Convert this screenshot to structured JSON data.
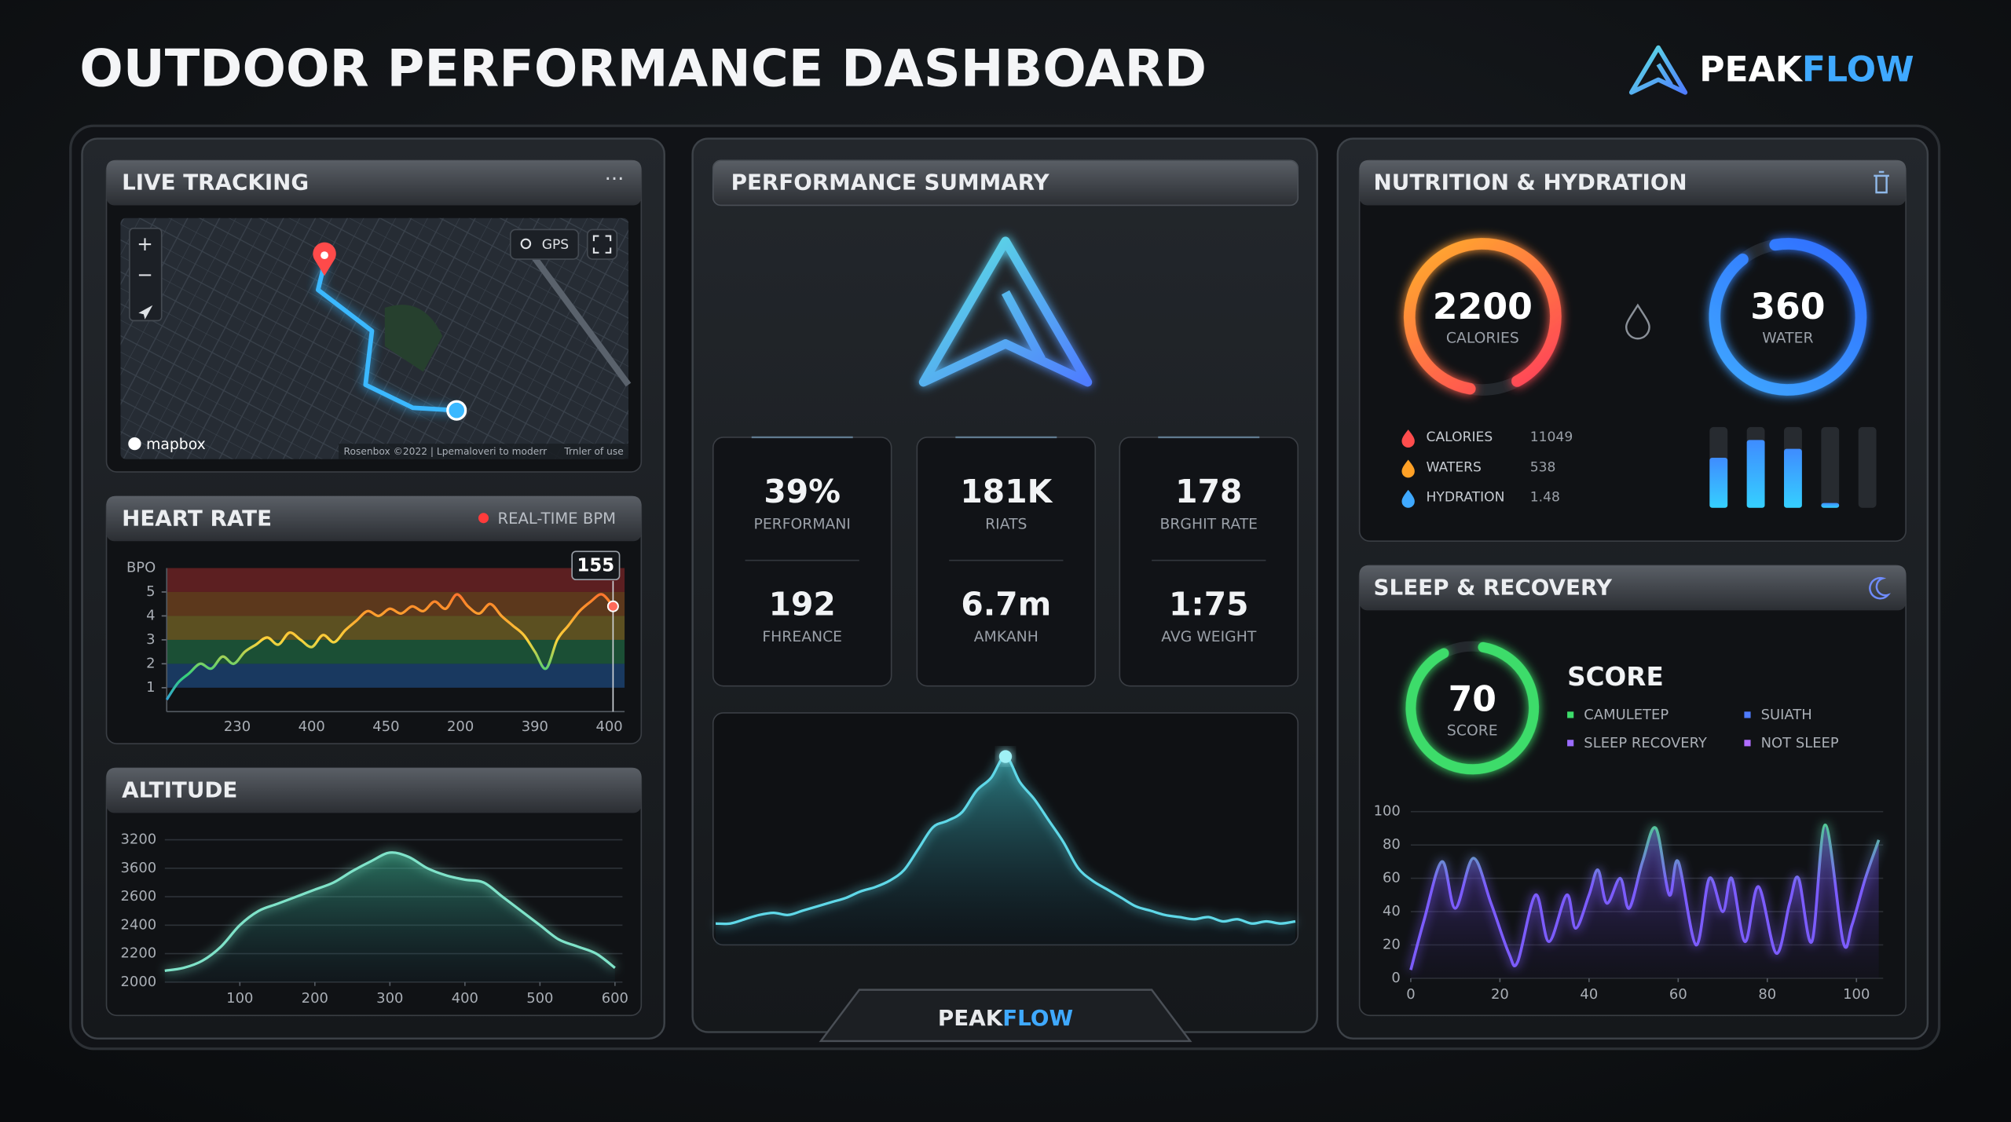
{
  "header": {
    "title": "OUTDOOR PERFORMANCE DASHBOARD",
    "brand_main": "PEAK",
    "brand_accent": "FLOW"
  },
  "live_tracking": {
    "title": "LIVE TRACKING",
    "gps": "GPS",
    "map_credit": "mapbox",
    "attribution": "Rosenbox ©2022 | Lpemaloveri to moderr",
    "terms": "Trnler of use"
  },
  "summary": {
    "title": "PERFORMANCE SUMMARY",
    "stats": [
      {
        "value": "39%",
        "label": "PERFORMANI"
      },
      {
        "value": "181K",
        "label": "RIATS"
      },
      {
        "value": "178",
        "label": "BRGHIT RATE"
      },
      {
        "value": "192",
        "label": "FHREANCE"
      },
      {
        "value": "6.7m",
        "label": "AMKANH"
      },
      {
        "value": "1:75",
        "label": "AVG WEIGHT"
      }
    ]
  },
  "nutrition": {
    "title": "NUTRITION & HYDRATION",
    "calories": {
      "value": "2200",
      "label": "CALORIES"
    },
    "water": {
      "value": "360",
      "label": "WATER"
    },
    "legend": [
      {
        "label": "CALORIES",
        "value": "11049",
        "color": "#ff4d4d"
      },
      {
        "label": "WATERS",
        "value": "538",
        "color": "#ffa126"
      },
      {
        "label": "HYDRATION",
        "value": "1.48",
        "color": "#3fa9ff"
      }
    ]
  },
  "sleep": {
    "title": "SLEEP & RECOVERY",
    "score": "70",
    "score_label": "SCORE",
    "heading": "SCORE",
    "legend": [
      {
        "label": "CAMULETEP",
        "color": "#3ddc6a"
      },
      {
        "label": "SUIATH",
        "color": "#4f7cff"
      },
      {
        "label": "SLEEP RECOVERY",
        "color": "#9b6cff"
      },
      {
        "label": "NOT SLEEP",
        "color": "#b06cff"
      }
    ]
  },
  "chart_data": [
    {
      "type": "line",
      "title": "HEART RATE",
      "subtitle": "REAL-TIME BPM",
      "y_label": "BPO",
      "callout": "155",
      "ylim": [
        0,
        6
      ],
      "yticks": [
        1,
        2,
        3,
        4,
        5
      ],
      "x_labels": [
        "230",
        "400",
        "450",
        "200",
        "390",
        "400"
      ],
      "values": [
        0.5,
        1.2,
        1.6,
        2.0,
        1.8,
        2.3,
        2.0,
        2.5,
        2.8,
        3.1,
        2.8,
        3.3,
        3.0,
        2.7,
        3.2,
        2.9,
        3.4,
        3.8,
        4.2,
        4.0,
        4.3,
        4.1,
        4.4,
        4.2,
        4.6,
        4.3,
        4.9,
        4.4,
        4.1,
        4.5,
        4.0,
        3.6,
        3.2,
        2.5,
        1.8,
        3.0,
        3.6,
        4.2,
        4.6,
        4.9,
        4.4
      ],
      "colors": [
        "#2f8bff",
        "#35d07a",
        "#ffd23a",
        "#ff8a2a",
        "#ff3b3b"
      ]
    },
    {
      "type": "area",
      "title": "ALTITUDE",
      "color": "#7fe3c9",
      "x": [
        0,
        25,
        50,
        75,
        100,
        125,
        150,
        175,
        200,
        225,
        250,
        275,
        300,
        325,
        350,
        375,
        400,
        425,
        450,
        475,
        500,
        525,
        550,
        575,
        600
      ],
      "values": [
        2080,
        2100,
        2150,
        2250,
        2400,
        2500,
        2550,
        2600,
        2650,
        2700,
        2780,
        2850,
        2910,
        2880,
        2800,
        2750,
        2720,
        2700,
        2600,
        2500,
        2400,
        2300,
        2250,
        2200,
        2100
      ],
      "xlim": [
        0,
        610
      ],
      "xticks": [
        100,
        200,
        300,
        400,
        500,
        600
      ],
      "ylim": [
        2000,
        3000
      ],
      "y_labels": [
        "2000",
        "2200",
        "2400",
        "2600",
        "3600",
        "3200"
      ],
      "grid": true
    },
    {
      "type": "area",
      "color": "#5fd8e8",
      "ylim": [
        0,
        100
      ],
      "values": [
        10,
        10,
        12,
        14,
        15,
        14,
        16,
        18,
        20,
        22,
        25,
        27,
        30,
        35,
        45,
        55,
        58,
        62,
        72,
        78,
        88,
        76,
        68,
        58,
        48,
        36,
        30,
        26,
        22,
        18,
        16,
        14,
        13,
        12,
        13,
        11,
        12,
        10,
        11,
        10,
        11
      ]
    },
    {
      "type": "bar",
      "color": "#3fa9ff",
      "ylim": [
        0,
        100
      ],
      "values": [
        62,
        84,
        73,
        6,
        0
      ]
    },
    {
      "type": "line",
      "colors": [
        "#7c5cff",
        "#4ade80"
      ],
      "x": [
        0,
        3,
        7,
        10,
        14,
        18,
        22,
        24,
        28,
        31,
        35,
        37,
        40,
        42,
        44,
        47,
        49,
        52,
        55,
        58,
        60,
        64,
        67,
        70,
        72,
        75,
        78,
        82,
        85,
        87,
        90,
        93,
        97,
        99,
        102,
        105
      ],
      "values": [
        5,
        35,
        70,
        42,
        72,
        45,
        15,
        10,
        50,
        22,
        50,
        30,
        50,
        65,
        45,
        60,
        42,
        70,
        90,
        50,
        70,
        20,
        60,
        40,
        60,
        22,
        55,
        15,
        45,
        60,
        22,
        92,
        22,
        32,
        60,
        83
      ],
      "xlim": [
        0,
        106
      ],
      "xticks": [
        0,
        20,
        40,
        60,
        80,
        100
      ],
      "ylim": [
        0,
        100
      ],
      "yticks": [
        0,
        20,
        40,
        60,
        80,
        100
      ],
      "grid": true
    }
  ]
}
